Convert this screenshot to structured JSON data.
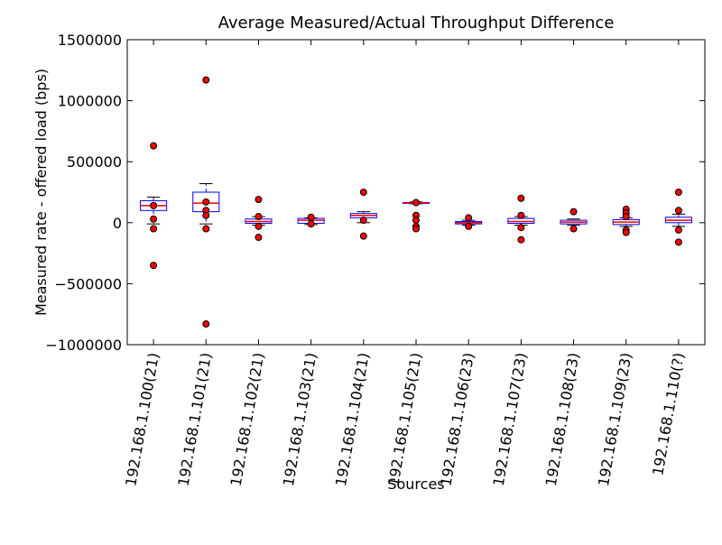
{
  "chart_data": {
    "type": "box",
    "title": "Average Measured/Actual Throughput Difference",
    "xlabel": "Sources",
    "ylabel": "Measured rate - offered load (bps)",
    "categories": [
      "192.168.1.100(21)",
      "192.168.1.101(21)",
      "192.168.1.102(21)",
      "192.168.1.103(21)",
      "192.168.1.104(21)",
      "192.168.1.105(21)",
      "192.168.1.106(23)",
      "192.168.1.107(23)",
      "192.168.1.108(23)",
      "192.168.1.109(23)",
      "192.168.1.110(?)"
    ],
    "box_color": "#0000ff",
    "median_color": "#ff0000",
    "outlier_color": "#ff0000",
    "ylim": [
      -1000000,
      1500000
    ],
    "yticks": [
      {
        "value": -1000000,
        "label": "−1000000"
      },
      {
        "value": -500000,
        "label": "−500000"
      },
      0,
      500000,
      1000000,
      1500000
    ],
    "boxes": [
      {
        "min": -10000,
        "q1": 100000,
        "median": 140000,
        "q3": 180000,
        "max": 210000,
        "outliers": [
          630000,
          140000,
          30000,
          -50000,
          -350000
        ]
      },
      {
        "min": -10000,
        "q1": 90000,
        "median": 160000,
        "q3": 250000,
        "max": 320000,
        "outliers": [
          1170000,
          170000,
          100000,
          60000,
          -50000,
          -830000
        ]
      },
      {
        "min": -20000,
        "q1": -5000,
        "median": 10000,
        "q3": 30000,
        "max": 50000,
        "outliers": [
          190000,
          50000,
          -30000,
          -120000
        ]
      },
      {
        "min": -15000,
        "q1": -5000,
        "median": 20000,
        "q3": 35000,
        "max": 40000,
        "outliers": [
          45000,
          -10000
        ]
      },
      {
        "min": 0,
        "q1": 40000,
        "median": 60000,
        "q3": 75000,
        "max": 90000,
        "outliers": [
          250000,
          20000,
          -110000
        ]
      },
      {
        "min": 155000,
        "q1": 160000,
        "median": 162000,
        "q3": 165000,
        "max": 170000,
        "outliers": [
          165000,
          60000,
          20000,
          -30000,
          -50000
        ]
      },
      {
        "min": -20000,
        "q1": -10000,
        "median": 0,
        "q3": 10000,
        "max": 20000,
        "outliers": [
          40000,
          -30000
        ]
      },
      {
        "min": -20000,
        "q1": -5000,
        "median": 10000,
        "q3": 35000,
        "max": 50000,
        "outliers": [
          200000,
          60000,
          -40000,
          -140000
        ]
      },
      {
        "min": -20000,
        "q1": -10000,
        "median": 5000,
        "q3": 20000,
        "max": 30000,
        "outliers": [
          90000,
          -50000
        ]
      },
      {
        "min": -30000,
        "q1": -15000,
        "median": 5000,
        "q3": 25000,
        "max": 40000,
        "outliers": [
          110000,
          80000,
          50000,
          -60000,
          -80000
        ]
      },
      {
        "min": -30000,
        "q1": 0,
        "median": 20000,
        "q3": 45000,
        "max": 70000,
        "outliers": [
          250000,
          100000,
          -60000,
          -160000
        ]
      }
    ]
  }
}
